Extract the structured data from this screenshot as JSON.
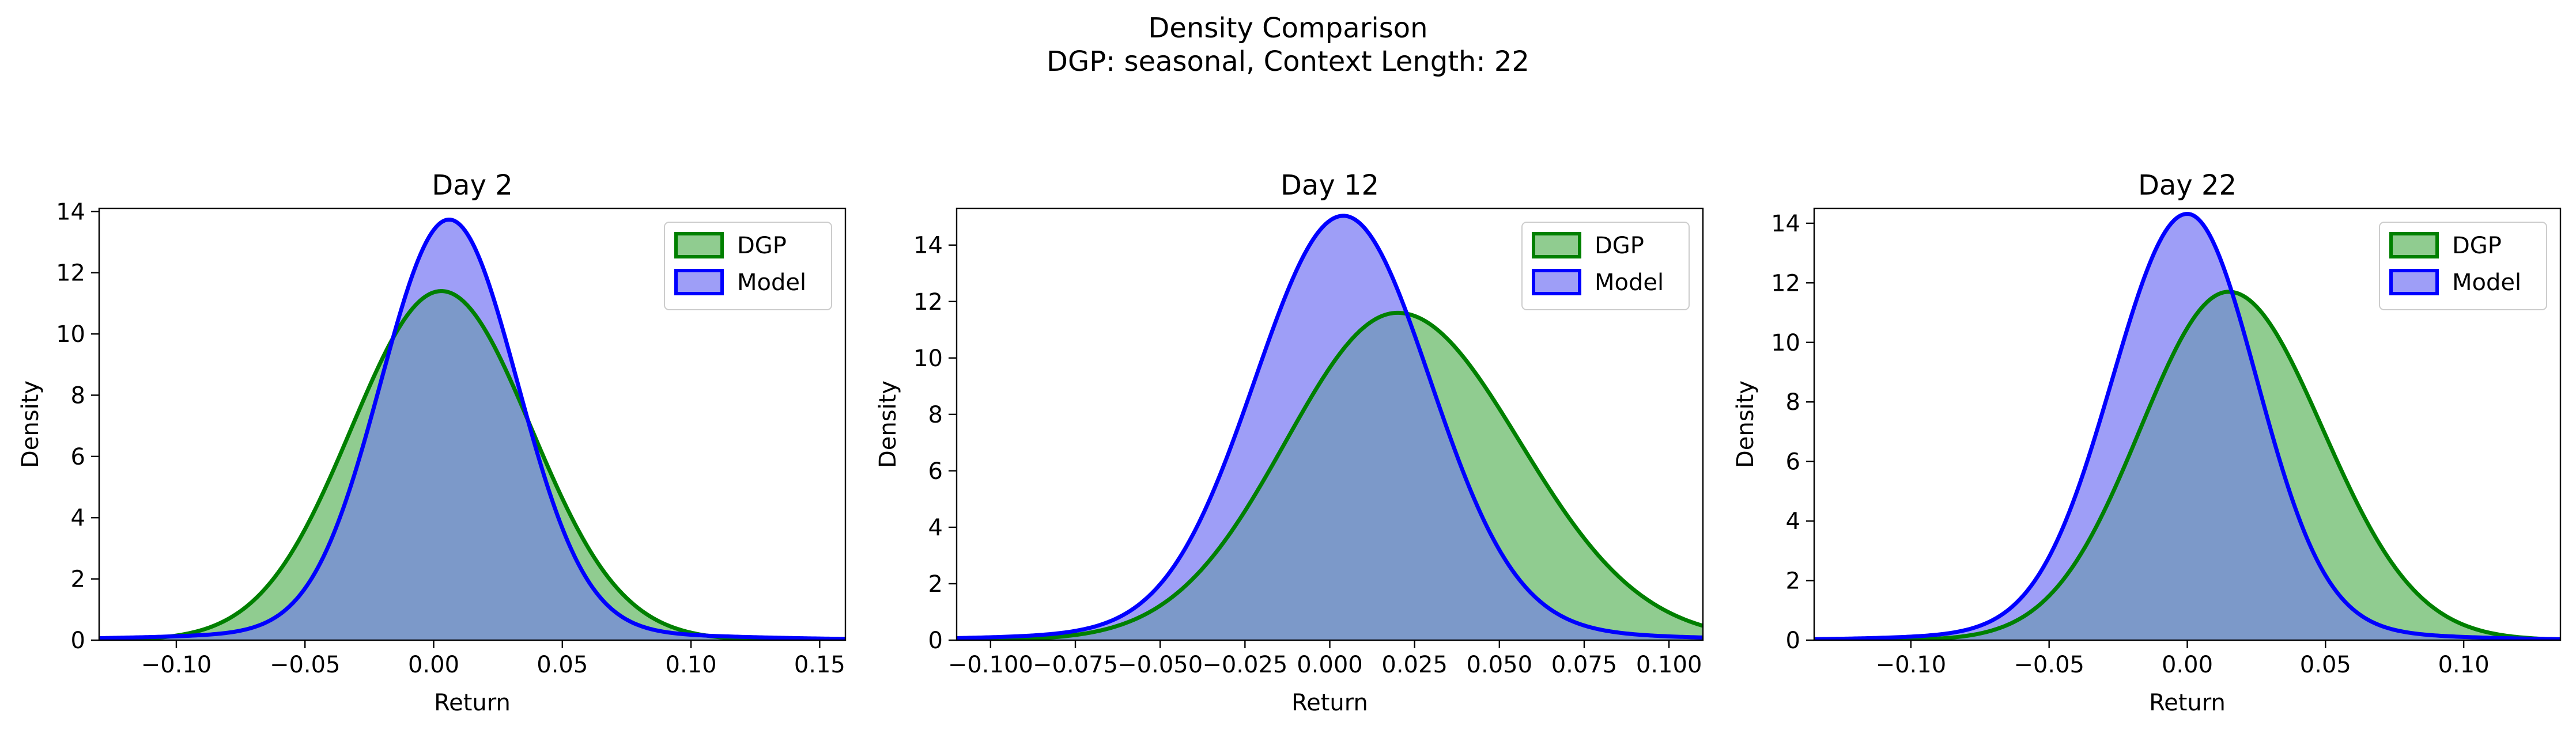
{
  "figure": {
    "title": "Density Comparison",
    "subtitle": "DGP: seasonal, Context Length: 22"
  },
  "colors": {
    "dgp_line": "#008000",
    "dgp_fill": "#90cc90",
    "model_line": "#0000ff",
    "model_fill": "#9e9ef7",
    "overlap_fill": "#7c99c9"
  },
  "chart_data": [
    {
      "type": "area",
      "title": "Day 2",
      "xlabel": "Return",
      "ylabel": "Density",
      "xlim": [
        -0.13,
        0.16
      ],
      "ylim": [
        0,
        14.1
      ],
      "xticks": [
        -0.1,
        -0.05,
        0.0,
        0.05,
        0.1,
        0.15
      ],
      "xtick_labels": [
        "−0.10",
        "−0.05",
        "0.00",
        "0.05",
        "0.10",
        "0.15"
      ],
      "yticks": [
        0,
        2,
        4,
        6,
        8,
        10,
        12,
        14
      ],
      "legend": "upper-right",
      "series": [
        {
          "name": "DGP",
          "peak_x": 0.003,
          "peak_y": 11.4,
          "sd_left": 0.035,
          "sd_right": 0.035,
          "tail_w": 0,
          "tail_s": 0.03
        },
        {
          "name": "Model",
          "peak_x": 0.006,
          "peak_y": 13.4,
          "sd_left": 0.0265,
          "sd_right": 0.0265,
          "tail_w": 0.025,
          "tail_s": 0.075
        }
      ]
    },
    {
      "type": "area",
      "title": "Day 12",
      "xlabel": "Return",
      "ylabel": "Density",
      "xlim": [
        -0.11,
        0.11
      ],
      "ylim": [
        0,
        15.3
      ],
      "xticks": [
        -0.1,
        -0.075,
        -0.05,
        -0.025,
        0.0,
        0.025,
        0.05,
        0.075,
        0.1
      ],
      "xtick_labels": [
        "−0.100",
        "−0.075",
        "−0.050",
        "−0.025",
        "0.000",
        "0.025",
        "0.050",
        "0.075",
        "0.100"
      ],
      "yticks": [
        0,
        2,
        4,
        6,
        8,
        10,
        12,
        14
      ],
      "legend": "upper-right",
      "series": [
        {
          "name": "DGP",
          "peak_x": 0.02,
          "peak_y": 11.6,
          "sd_left": 0.033,
          "sd_right": 0.036,
          "tail_w": 0,
          "tail_s": 0.03
        },
        {
          "name": "Model",
          "peak_x": 0.004,
          "peak_y": 14.6,
          "sd_left": 0.026,
          "sd_right": 0.0255,
          "tail_w": 0.03,
          "tail_s": 0.06
        }
      ]
    },
    {
      "type": "area",
      "title": "Day 22",
      "xlabel": "Return",
      "ylabel": "Density",
      "xlim": [
        -0.135,
        0.135
      ],
      "ylim": [
        0,
        14.5
      ],
      "xticks": [
        -0.1,
        -0.05,
        0.0,
        0.05,
        0.1
      ],
      "xtick_labels": [
        "−0.10",
        "−0.05",
        "0.00",
        "0.05",
        "0.10"
      ],
      "yticks": [
        0,
        2,
        4,
        6,
        8,
        10,
        12,
        14
      ],
      "legend": "upper-right",
      "series": [
        {
          "name": "DGP",
          "peak_x": 0.015,
          "peak_y": 11.7,
          "sd_left": 0.032,
          "sd_right": 0.034,
          "tail_w": 0,
          "tail_s": 0.03
        },
        {
          "name": "Model",
          "peak_x": 0.0,
          "peak_y": 13.9,
          "sd_left": 0.027,
          "sd_right": 0.025,
          "tail_w": 0.03,
          "tail_s": 0.06
        }
      ]
    }
  ]
}
